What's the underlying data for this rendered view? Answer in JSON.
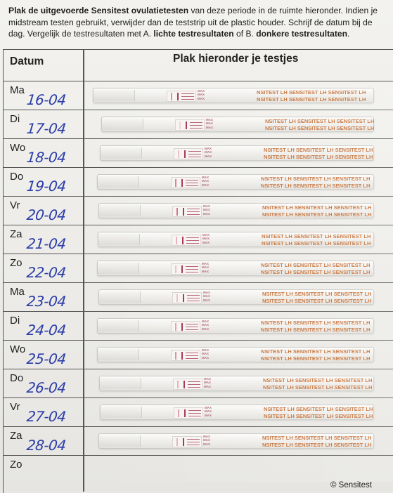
{
  "instructions": {
    "part1": "Plak de uitgevoerde ",
    "bold1": "Sensitest ovulatietesten",
    "part2": " van deze periode in de ruimte hieronder. Indien je midstream testen gebruikt, verwijder dan de teststrip uit de plastic houder. Schrijf de datum bij de dag. Vergelijk de testresultaten met A. ",
    "bold2": "lichte testresultaten",
    "part3": " of B. ",
    "bold3": "donkere testresultaten",
    "part4": "."
  },
  "table": {
    "col_date": "Datum",
    "col_tests": "Plak hieronder je testjes"
  },
  "strip_text": {
    "max_label": "MAX",
    "brand_line": "NSITEST LH   SENSITEST LH   SENSITEST LH"
  },
  "rows": [
    {
      "day": "Ma",
      "date": "16-04",
      "tline": 0.6
    },
    {
      "day": "Di",
      "date": "17-04",
      "tline": 0.2
    },
    {
      "day": "Wo",
      "date": "18-04",
      "tline": 0.3
    },
    {
      "day": "Do",
      "date": "19-04",
      "tline": 0.7
    },
    {
      "day": "Vr",
      "date": "20-04",
      "tline": 0.8
    },
    {
      "day": "Za",
      "date": "21-04",
      "tline": 0.4
    },
    {
      "day": "Zo",
      "date": "22-04",
      "tline": 0.3
    },
    {
      "day": "Ma",
      "date": "23-04",
      "tline": 0.3
    },
    {
      "day": "Di",
      "date": "24-04",
      "tline": 0.5
    },
    {
      "day": "Wo",
      "date": "25-04",
      "tline": 0.6
    },
    {
      "day": "Do",
      "date": "26-04",
      "tline": 0.4
    },
    {
      "day": "Vr",
      "date": "27-04",
      "tline": 0.5
    },
    {
      "day": "Za",
      "date": "28-04",
      "tline": 0.4
    },
    {
      "day": "Zo",
      "date": "",
      "tline": 0
    }
  ],
  "footer": {
    "brand": "© Sensitest"
  },
  "colors": {
    "ink": "#2a3ca8",
    "test_line": "#c24d6c",
    "brand_text": "#c46a2d"
  }
}
